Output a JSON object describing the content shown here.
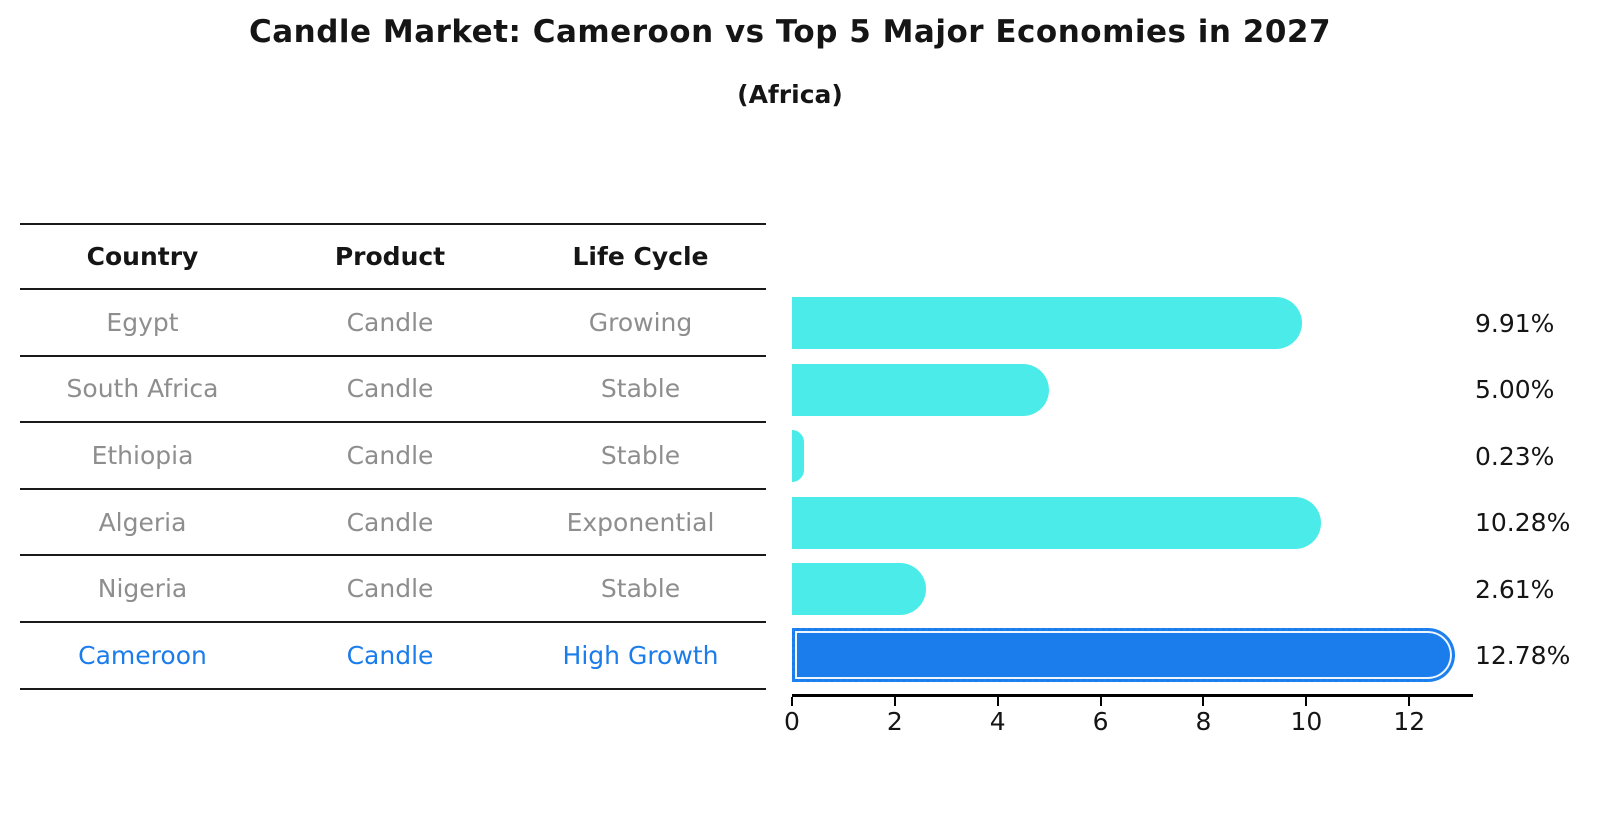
{
  "title": "Candle Market: Cameroon vs Top 5 Major Economies in 2027",
  "subtitle": "(Africa)",
  "table": {
    "headers": [
      "Country",
      "Product",
      "Life Cycle"
    ],
    "rows": [
      {
        "country": "Egypt",
        "product": "Candle",
        "life_cycle": "Growing",
        "highlight": false
      },
      {
        "country": "South Africa",
        "product": "Candle",
        "life_cycle": "Stable",
        "highlight": false
      },
      {
        "country": "Ethiopia",
        "product": "Candle",
        "life_cycle": "Stable",
        "highlight": false
      },
      {
        "country": "Algeria",
        "product": "Candle",
        "life_cycle": "Exponential",
        "highlight": false
      },
      {
        "country": "Nigeria",
        "product": "Candle",
        "life_cycle": "Stable",
        "highlight": false
      },
      {
        "country": "Cameroon",
        "product": "Candle",
        "life_cycle": "High Growth",
        "highlight": true
      }
    ]
  },
  "chart_data": {
    "type": "bar",
    "orientation": "horizontal",
    "title": "Candle Market: Cameroon vs Top 5 Major Economies in 2027",
    "subtitle": "(Africa)",
    "categories": [
      "Egypt",
      "South Africa",
      "Ethiopia",
      "Algeria",
      "Nigeria",
      "Cameroon"
    ],
    "values": [
      9.91,
      5.0,
      0.23,
      10.28,
      2.61,
      12.78
    ],
    "value_labels": [
      "9.91%",
      "5.00%",
      "0.23%",
      "10.28%",
      "2.61%",
      "12.78%"
    ],
    "x_ticks": [
      0,
      2,
      4,
      6,
      8,
      10,
      12
    ],
    "xlim": [
      0,
      13.24
    ],
    "grid": false,
    "legend": "none",
    "bar_color": "#4aebe8",
    "highlight_color": "#1b7ceb",
    "highlight_index": 5,
    "highlight_style": "dotted-border"
  }
}
